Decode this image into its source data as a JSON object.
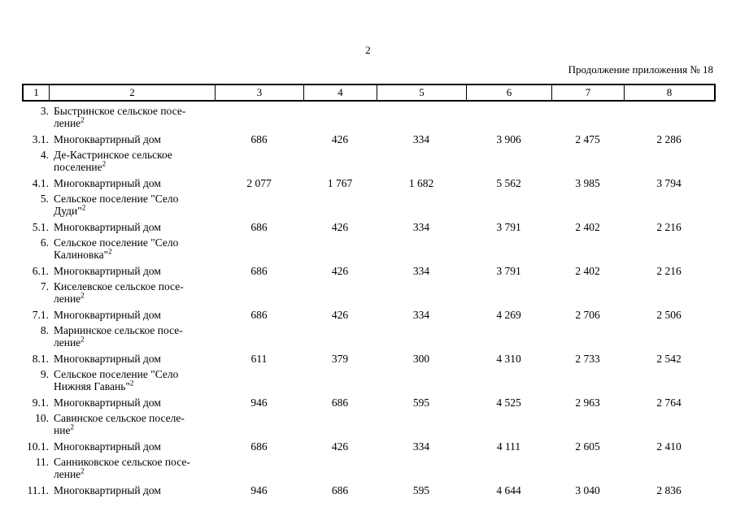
{
  "page": {
    "number": "2",
    "continuation": "Продолжение приложения № 18"
  },
  "table": {
    "header": [
      "1",
      "2",
      "3",
      "4",
      "5",
      "6",
      "7",
      "8"
    ],
    "rows": [
      {
        "type": "section",
        "num": "3.",
        "line1": "Быстринское сельское посе-",
        "line2": "ление",
        "sup": "2"
      },
      {
        "type": "item",
        "num": "3.1.",
        "name": "Многоквартирный дом",
        "values": [
          "686",
          "426",
          "334",
          "3 906",
          "2 475",
          "2 286"
        ]
      },
      {
        "type": "section",
        "num": "4.",
        "line1": "Де-Кастринское сельское",
        "line2": "поселение",
        "sup": "2"
      },
      {
        "type": "item",
        "num": "4.1.",
        "name": "Многоквартирный дом",
        "values": [
          "2 077",
          "1 767",
          "1 682",
          "5 562",
          "3 985",
          "3 794"
        ]
      },
      {
        "type": "section",
        "num": "5.",
        "line1": "Сельское поселение \"Село",
        "line2": "Дуди\"",
        "sup": "2"
      },
      {
        "type": "item",
        "num": "5.1.",
        "name": "Многоквартирный дом",
        "values": [
          "686",
          "426",
          "334",
          "3 791",
          "2 402",
          "2 216"
        ]
      },
      {
        "type": "section",
        "num": "6.",
        "line1": "Сельское поселение \"Село",
        "line2": "Калиновка\"",
        "sup": "2"
      },
      {
        "type": "item",
        "num": "6.1.",
        "name": "Многоквартирный дом",
        "values": [
          "686",
          "426",
          "334",
          "3 791",
          "2 402",
          "2 216"
        ]
      },
      {
        "type": "section",
        "num": "7.",
        "line1": "Киселевское сельское посе-",
        "line2": "ление",
        "sup": "2"
      },
      {
        "type": "item",
        "num": "7.1.",
        "name": "Многоквартирный дом",
        "values": [
          "686",
          "426",
          "334",
          "4 269",
          "2 706",
          "2 506"
        ]
      },
      {
        "type": "section",
        "num": "8.",
        "line1": "Мариинское сельское посе-",
        "line2": "ление",
        "sup": "2"
      },
      {
        "type": "item",
        "num": "8.1.",
        "name": "Многоквартирный дом",
        "values": [
          "611",
          "379",
          "300",
          "4 310",
          "2 733",
          "2 542"
        ]
      },
      {
        "type": "section",
        "num": "9.",
        "line1": "Сельское поселение \"Село",
        "line2": "Нижняя Гавань\"",
        "sup": "2"
      },
      {
        "type": "item",
        "num": "9.1.",
        "name": "Многоквартирный дом",
        "values": [
          "946",
          "686",
          "595",
          "4 525",
          "2 963",
          "2 764"
        ]
      },
      {
        "type": "section",
        "num": "10.",
        "line1": "Савинское сельское поселе-",
        "line2": "ние",
        "sup": "2"
      },
      {
        "type": "item",
        "num": "10.1.",
        "name": "Многоквартирный дом",
        "values": [
          "686",
          "426",
          "334",
          "4 111",
          "2 605",
          "2 410"
        ]
      },
      {
        "type": "section",
        "num": "11.",
        "line1": "Санниковское сельское посе-",
        "line2": "ление",
        "sup": "2"
      },
      {
        "type": "item",
        "num": "11.1.",
        "name": "Многоквартирный дом",
        "values": [
          "946",
          "686",
          "595",
          "4 644",
          "3 040",
          "2 836"
        ]
      }
    ]
  }
}
